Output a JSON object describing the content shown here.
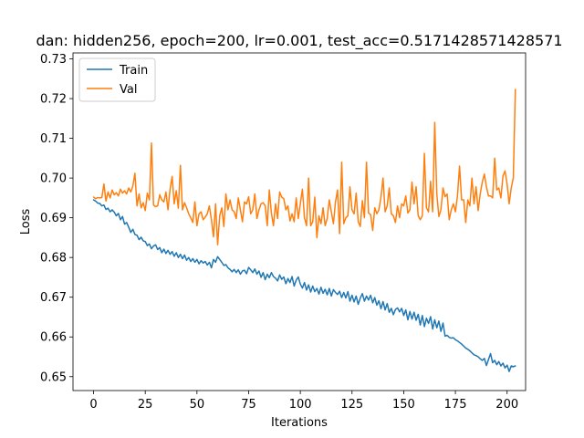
{
  "chart_data": {
    "type": "line",
    "title": "dan: hidden256, epoch=200, lr=0.001, test_acc=0.5171428571428571",
    "xlabel": "Iterations",
    "ylabel": "Loss",
    "xlim": [
      -9.95,
      208.95
    ],
    "ylim": [
      0.6465,
      0.7315
    ],
    "xticks": [
      0,
      25,
      50,
      75,
      100,
      125,
      150,
      175,
      200
    ],
    "yticks": [
      0.65,
      0.66,
      0.67,
      0.68,
      0.69,
      0.7,
      0.71,
      0.72,
      0.73
    ],
    "ytick_labels": [
      "0.65",
      "0.66",
      "0.67",
      "0.68",
      "0.69",
      "0.70",
      "0.71",
      "0.72",
      "0.73"
    ],
    "grid": false,
    "legend_position": "top-left",
    "series": [
      {
        "name": "Train",
        "color": "#1f77b4",
        "values": [
          0.6945,
          0.6942,
          0.6937,
          0.6936,
          0.693,
          0.6932,
          0.6921,
          0.6924,
          0.6915,
          0.692,
          0.6914,
          0.6905,
          0.6911,
          0.6895,
          0.6903,
          0.6884,
          0.6888,
          0.6876,
          0.6863,
          0.6871,
          0.6858,
          0.6856,
          0.6845,
          0.6851,
          0.6842,
          0.684,
          0.683,
          0.6834,
          0.6822,
          0.6829,
          0.6832,
          0.682,
          0.6825,
          0.6812,
          0.6821,
          0.681,
          0.6818,
          0.6808,
          0.6815,
          0.6803,
          0.6812,
          0.68,
          0.6808,
          0.6797,
          0.6806,
          0.6793,
          0.68,
          0.679,
          0.6797,
          0.6788,
          0.6795,
          0.6784,
          0.6792,
          0.6786,
          0.679,
          0.6781,
          0.6788,
          0.6774,
          0.6795,
          0.6788,
          0.6802,
          0.6795,
          0.6788,
          0.678,
          0.6782,
          0.6774,
          0.677,
          0.6764,
          0.677,
          0.6762,
          0.6769,
          0.6758,
          0.6766,
          0.6768,
          0.6759,
          0.6775,
          0.6769,
          0.6762,
          0.6771,
          0.6758,
          0.6766,
          0.675,
          0.6762,
          0.6744,
          0.6758,
          0.6749,
          0.6762,
          0.6752,
          0.6748,
          0.6741,
          0.6756,
          0.6745,
          0.6751,
          0.6734,
          0.6747,
          0.6737,
          0.6752,
          0.6728,
          0.6743,
          0.6751,
          0.6733,
          0.6723,
          0.6737,
          0.6718,
          0.6731,
          0.6713,
          0.6728,
          0.6714,
          0.6722,
          0.6708,
          0.6725,
          0.671,
          0.672,
          0.6706,
          0.6722,
          0.6703,
          0.6719,
          0.6712,
          0.6707,
          0.6715,
          0.6699,
          0.6712,
          0.6698,
          0.6714,
          0.669,
          0.6705,
          0.6688,
          0.6703,
          0.6682,
          0.6698,
          0.6709,
          0.669,
          0.6703,
          0.6693,
          0.6705,
          0.6686,
          0.6699,
          0.668,
          0.6691,
          0.6671,
          0.6689,
          0.6668,
          0.6684,
          0.6662,
          0.6672,
          0.6656,
          0.6669,
          0.6673,
          0.6663,
          0.6672,
          0.6654,
          0.6668,
          0.6643,
          0.6664,
          0.6645,
          0.6662,
          0.6642,
          0.6657,
          0.663,
          0.6654,
          0.6626,
          0.6647,
          0.6634,
          0.6651,
          0.662,
          0.6643,
          0.6623,
          0.664,
          0.6614,
          0.6635,
          0.6602,
          0.6604,
          0.6599,
          0.6597,
          0.6598,
          0.6593,
          0.659,
          0.6586,
          0.6582,
          0.6577,
          0.6572,
          0.6569,
          0.6565,
          0.656,
          0.6555,
          0.6553,
          0.655,
          0.6545,
          0.6541,
          0.6546,
          0.6528,
          0.6543,
          0.6558,
          0.6535,
          0.6541,
          0.653,
          0.6538,
          0.6527,
          0.6534,
          0.6522,
          0.6529,
          0.6513,
          0.6527,
          0.6525,
          0.6527
        ]
      },
      {
        "name": "Val",
        "color": "#ff7f0e",
        "values": [
          0.6952,
          0.6948,
          0.6951,
          0.695,
          0.6951,
          0.6985,
          0.6942,
          0.6965,
          0.695,
          0.697,
          0.6958,
          0.6963,
          0.6955,
          0.6972,
          0.6962,
          0.6968,
          0.696,
          0.6975,
          0.6965,
          0.698,
          0.7012,
          0.693,
          0.696,
          0.6925,
          0.6938,
          0.6918,
          0.6962,
          0.6945,
          0.7088,
          0.6932,
          0.6928,
          0.693,
          0.6958,
          0.6945,
          0.694,
          0.6965,
          0.692,
          0.6972,
          0.7004,
          0.6935,
          0.6968,
          0.6924,
          0.7032,
          0.692,
          0.6938,
          0.6925,
          0.691,
          0.69,
          0.6888,
          0.694,
          0.688,
          0.691,
          0.6915,
          0.6895,
          0.6902,
          0.691,
          0.693,
          0.6895,
          0.6852,
          0.6935,
          0.6832,
          0.6905,
          0.6925,
          0.6878,
          0.696,
          0.692,
          0.6945,
          0.692,
          0.6915,
          0.6898,
          0.695,
          0.692,
          0.689,
          0.694,
          0.6935,
          0.6953,
          0.691,
          0.692,
          0.696,
          0.6898,
          0.692,
          0.6935,
          0.6938,
          0.693,
          0.688,
          0.697,
          0.6912,
          0.688,
          0.6935,
          0.6898,
          0.6965,
          0.6952,
          0.6948,
          0.692,
          0.693,
          0.6892,
          0.691,
          0.689,
          0.695,
          0.6898,
          0.6935,
          0.6972,
          0.69,
          0.688,
          0.7,
          0.688,
          0.689,
          0.6952,
          0.685,
          0.6905,
          0.6885,
          0.6925,
          0.688,
          0.6898,
          0.6945,
          0.6915,
          0.6885,
          0.694,
          0.697,
          0.686,
          0.704,
          0.6885,
          0.69,
          0.6905,
          0.6978,
          0.692,
          0.691,
          0.6962,
          0.689,
          0.6878,
          0.6943,
          0.69,
          0.704,
          0.6912,
          0.6908,
          0.6868,
          0.6925,
          0.691,
          0.692,
          0.6952,
          0.7,
          0.6915,
          0.693,
          0.6975,
          0.691,
          0.6905,
          0.6888,
          0.693,
          0.69,
          0.6935,
          0.693,
          0.6955,
          0.6912,
          0.692,
          0.699,
          0.6935,
          0.6978,
          0.6905,
          0.6895,
          0.6905,
          0.7062,
          0.6925,
          0.6915,
          0.6992,
          0.6915,
          0.714,
          0.696,
          0.6903,
          0.692,
          0.6975,
          0.6953,
          0.696,
          0.6895,
          0.692,
          0.6935,
          0.6915,
          0.6955,
          0.703,
          0.6945,
          0.6945,
          0.6888,
          0.6945,
          0.693,
          0.7,
          0.6935,
          0.6978,
          0.6918,
          0.696,
          0.699,
          0.701,
          0.6978,
          0.6955,
          0.6955,
          0.695,
          0.705,
          0.697,
          0.6975,
          0.695,
          0.7005,
          0.7018,
          0.6985,
          0.6935,
          0.6975,
          0.7,
          0.7223
        ]
      }
    ]
  }
}
